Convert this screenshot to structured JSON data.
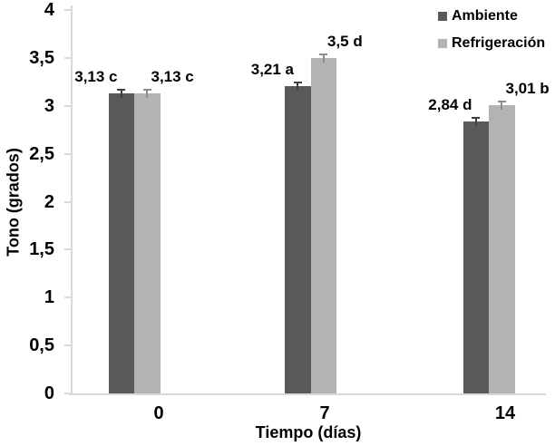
{
  "chart_data": {
    "type": "bar",
    "title": "",
    "categories": [
      "0",
      "7",
      "14"
    ],
    "series": [
      {
        "name": "Ambiente",
        "color": "#595959",
        "error_color": "#404040",
        "values": [
          3.13,
          3.21,
          2.84
        ],
        "value_labels": [
          "3,13 c",
          "3,21 a",
          "2,84 d"
        ],
        "label_side": "left"
      },
      {
        "name": "Refrigeración",
        "color": "#b3b3b3",
        "error_color": "#8c8c8c",
        "values": [
          3.13,
          3.5,
          3.01
        ],
        "value_labels": [
          "3,13 c",
          "3,5 d",
          "3,01 b"
        ],
        "label_side": "right"
      }
    ],
    "xlabel": "Tiempo (días)",
    "ylabel": "Tono (grados)",
    "ylim": [
      0,
      4
    ],
    "ytick_labels": [
      "0",
      "0,5",
      "1",
      "1,5",
      "2",
      "2,5",
      "3",
      "3,5",
      "4"
    ],
    "ytick_step": 0.5,
    "grid": false,
    "legend_position": "top-right",
    "error_bars": true,
    "axis_color": "#d9d9d9",
    "text_color": "#000000",
    "background_color": "#ffffff"
  }
}
